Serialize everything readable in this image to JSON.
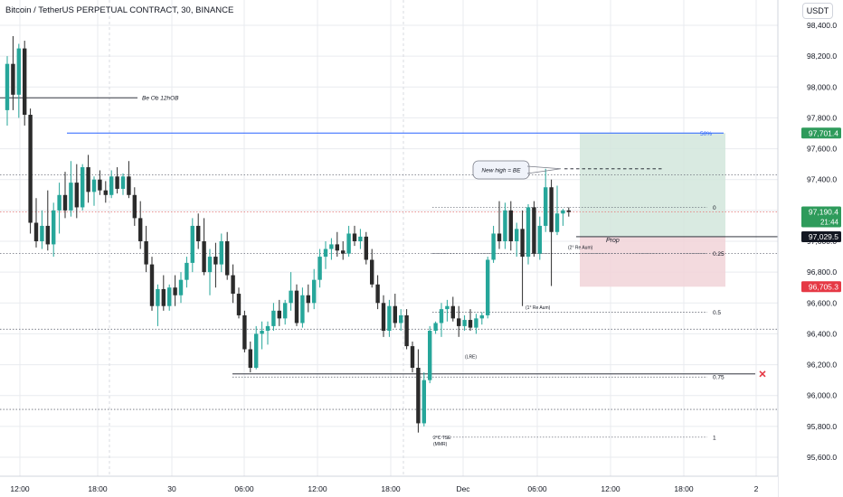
{
  "header": {
    "title": "Bitcoin / TetherUS PERPETUAL CONTRACT, 30, BINANCE",
    "currency": "USDT"
  },
  "colors": {
    "background": "#ffffff",
    "up": "#26a69a",
    "down": "#2b2b2b",
    "grid": "#e9ebef",
    "blue_line": "#2962ff",
    "green_zone": "#d2e6dc",
    "red_zone": "#f1d3d8",
    "green_tag": "#2e9b5b",
    "red_tag": "#e53945",
    "black_tag": "#131722"
  },
  "chart_data": {
    "type": "candlestick",
    "ylim": [
      95500,
      98500
    ],
    "y_ticks": [
      {
        "value": 98400,
        "label": "98,400.0"
      },
      {
        "value": 98200,
        "label": "98,200.0"
      },
      {
        "value": 98000,
        "label": "98,000.0"
      },
      {
        "value": 97800,
        "label": "97,800.0"
      },
      {
        "value": 97600,
        "label": "97,600.0"
      },
      {
        "value": 97400,
        "label": "97,400.0"
      },
      {
        "value": 97200,
        "label": "97,200.0"
      },
      {
        "value": 97000,
        "label": "97,000.0"
      },
      {
        "value": 96800,
        "label": "96,800.0"
      },
      {
        "value": 96600,
        "label": "96,600.0"
      },
      {
        "value": 96400,
        "label": "96,400.0"
      },
      {
        "value": 96200,
        "label": "96,200.0"
      },
      {
        "value": 96000,
        "label": "96,000.0"
      },
      {
        "value": 95800,
        "label": "95,800.0"
      },
      {
        "value": 95600,
        "label": "95,600.0"
      }
    ],
    "x_ticks": [
      "12:00",
      "18:00",
      "30",
      "06:00",
      "12:00",
      "18:00",
      "Dec",
      "06:00",
      "12:00",
      "18:00",
      "2"
    ],
    "price_tags": [
      {
        "value": 97701.4,
        "label": "97,701.4",
        "kind": "green"
      },
      {
        "value": 97190.4,
        "label": "97,190.4",
        "sublabel": "21:44",
        "kind": "green"
      },
      {
        "value": 97029.5,
        "label": "97,029.5",
        "kind": "black"
      },
      {
        "value": 96705.3,
        "label": "96,705.3",
        "kind": "red"
      }
    ],
    "candles": [
      [
        97850,
        98200,
        97750,
        98150
      ],
      [
        98150,
        98330,
        97850,
        97950
      ],
      [
        97950,
        98280,
        97800,
        98250
      ],
      [
        98250,
        98300,
        97750,
        97820
      ],
      [
        97820,
        97860,
        97050,
        97120
      ],
      [
        97120,
        97280,
        96960,
        97000
      ],
      [
        97000,
        97200,
        96950,
        97100
      ],
      [
        97100,
        97330,
        96940,
        96980
      ],
      [
        96980,
        97250,
        96900,
        97200
      ],
      [
        97200,
        97380,
        97050,
        97300
      ],
      [
        97300,
        97450,
        97150,
        97200
      ],
      [
        97200,
        97520,
        97160,
        97380
      ],
      [
        97380,
        97500,
        97150,
        97220
      ],
      [
        97220,
        97500,
        97200,
        97480
      ],
      [
        97480,
        97560,
        97250,
        97320
      ],
      [
        97320,
        97420,
        97230,
        97400
      ],
      [
        97400,
        97460,
        97300,
        97330
      ],
      [
        97330,
        97390,
        97250,
        97300
      ],
      [
        97300,
        97460,
        97280,
        97420
      ],
      [
        97420,
        97480,
        97310,
        97340
      ],
      [
        97340,
        97440,
        97300,
        97420
      ],
      [
        97420,
        97520,
        97280,
        97300
      ],
      [
        97300,
        97350,
        97100,
        97150
      ],
      [
        97150,
        97260,
        96950,
        97000
      ],
      [
        97000,
        97100,
        96800,
        96850
      ],
      [
        96850,
        96900,
        96550,
        96580
      ],
      [
        96580,
        96720,
        96450,
        96690
      ],
      [
        96690,
        96780,
        96550,
        96580
      ],
      [
        96580,
        96720,
        96550,
        96700
      ],
      [
        96700,
        96780,
        96580,
        96650
      ],
      [
        96650,
        96800,
        96600,
        96750
      ],
      [
        96750,
        96900,
        96700,
        96860
      ],
      [
        96860,
        97150,
        96800,
        97100
      ],
      [
        97100,
        97180,
        96950,
        97000
      ],
      [
        97000,
        97150,
        96780,
        96800
      ],
      [
        96800,
        96950,
        96650,
        96900
      ],
      [
        96900,
        96990,
        96700,
        96850
      ],
      [
        96850,
        97050,
        96800,
        97000
      ],
      [
        97000,
        97060,
        96750,
        96780
      ],
      [
        96780,
        96850,
        96600,
        96660
      ],
      [
        96660,
        96700,
        96500,
        96520
      ],
      [
        96520,
        96550,
        96280,
        96300
      ],
      [
        96300,
        96350,
        96150,
        96180
      ],
      [
        96180,
        96450,
        96170,
        96400
      ],
      [
        96400,
        96480,
        96300,
        96420
      ],
      [
        96420,
        96480,
        96330,
        96450
      ],
      [
        96450,
        96600,
        96420,
        96550
      ],
      [
        96550,
        96620,
        96450,
        96500
      ],
      [
        96500,
        96620,
        96460,
        96600
      ],
      [
        96600,
        96800,
        96550,
        96680
      ],
      [
        96680,
        96720,
        96450,
        96470
      ],
      [
        96470,
        96700,
        96440,
        96650
      ],
      [
        96650,
        96720,
        96540,
        96600
      ],
      [
        96600,
        96820,
        96560,
        96750
      ],
      [
        96750,
        96950,
        96700,
        96900
      ],
      [
        96900,
        97000,
        96820,
        96950
      ],
      [
        96950,
        97020,
        96880,
        96980
      ],
      [
        96980,
        97060,
        96900,
        96940
      ],
      [
        96940,
        97000,
        96880,
        96920
      ],
      [
        96920,
        97100,
        96900,
        97050
      ],
      [
        97050,
        97100,
        96970,
        97000
      ],
      [
        97000,
        97080,
        96950,
        97030
      ],
      [
        97030,
        97060,
        96850,
        96880
      ],
      [
        96880,
        96950,
        96700,
        96720
      ],
      [
        96720,
        96780,
        96560,
        96600
      ],
      [
        96600,
        96650,
        96380,
        96420
      ],
      [
        96420,
        96620,
        96380,
        96580
      ],
      [
        96580,
        96660,
        96440,
        96470
      ],
      [
        96470,
        96560,
        96420,
        96520
      ],
      [
        96520,
        96560,
        96300,
        96320
      ],
      [
        96320,
        96350,
        96150,
        96180
      ],
      [
        96180,
        96300,
        95760,
        95820
      ],
      [
        95820,
        96150,
        95800,
        96100
      ],
      [
        96100,
        96450,
        96080,
        96420
      ],
      [
        96420,
        96480,
        96400,
        96470
      ],
      [
        96470,
        96600,
        96380,
        96560
      ],
      [
        96560,
        96620,
        96480,
        96580
      ],
      [
        96580,
        96640,
        96480,
        96500
      ],
      [
        96500,
        96580,
        96380,
        96450
      ],
      [
        96450,
        96520,
        96420,
        96490
      ],
      [
        96490,
        96560,
        96420,
        96440
      ],
      [
        96440,
        96530,
        96400,
        96500
      ],
      [
        96500,
        96540,
        96460,
        96520
      ],
      [
        96520,
        96900,
        96500,
        96880
      ],
      [
        96880,
        97100,
        96860,
        97050
      ],
      [
        97050,
        97260,
        96950,
        97000
      ],
      [
        97000,
        97250,
        96950,
        97200
      ],
      [
        97200,
        97260,
        96940,
        97000
      ],
      [
        97000,
        97120,
        96900,
        97080
      ],
      [
        97080,
        97200,
        96580,
        96900
      ],
      [
        96900,
        97240,
        96850,
        97220
      ],
      [
        97220,
        97260,
        96900,
        96920
      ],
      [
        96920,
        97160,
        96880,
        97100
      ],
      [
        97100,
        97470,
        97060,
        97350
      ],
      [
        97350,
        97400,
        96710,
        97060
      ],
      [
        97060,
        97360,
        97040,
        97180
      ],
      [
        97180,
        97210,
        97100,
        97200
      ],
      [
        97200,
        97220,
        97160,
        97190
      ]
    ],
    "levels": [
      {
        "value": 97701.4,
        "label": "50%"
      },
      {
        "value": 97220,
        "label": "0"
      },
      {
        "value": 96920,
        "label": "0.25"
      },
      {
        "value": 96540,
        "label": "0.5"
      },
      {
        "value": 96120,
        "label": "0.75"
      },
      {
        "value": 95730,
        "label": "1"
      }
    ],
    "annotations": [
      {
        "text": "Be Ob 12hOB"
      },
      {
        "text": "New high = BE"
      },
      {
        "text": "Prop"
      },
      {
        "text": "(2° Re Aum)"
      },
      {
        "text": "(1° Re Aum)"
      },
      {
        "text": "(LRE)"
      },
      {
        "text": "2°C TSE"
      },
      {
        "text": "(MMR)"
      }
    ]
  }
}
